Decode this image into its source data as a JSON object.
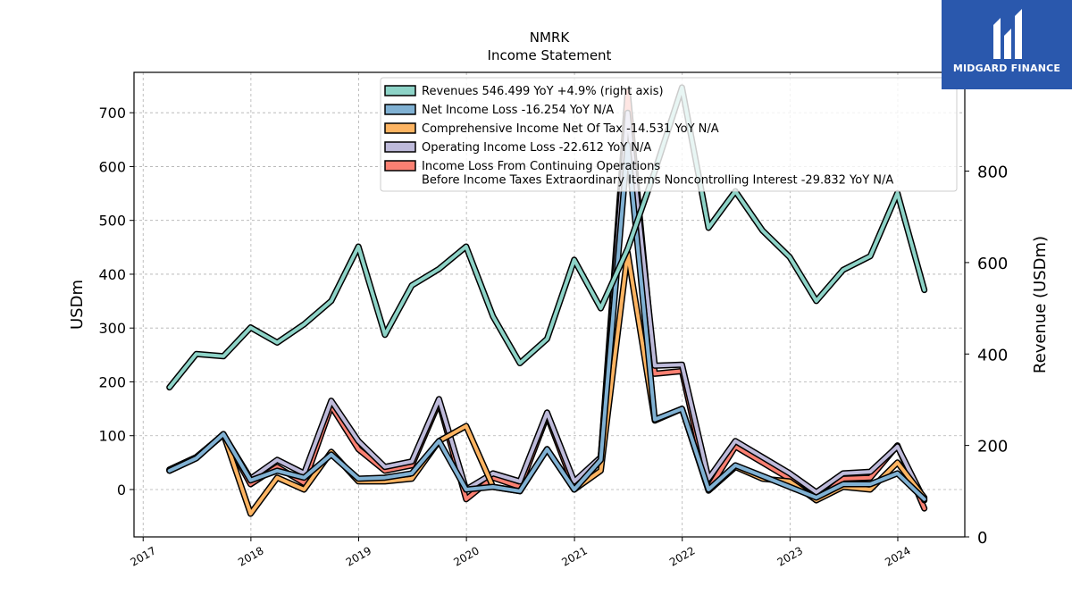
{
  "brand": {
    "name": "MIDGARD FINANCE"
  },
  "chart_data": {
    "type": "line",
    "title": "NMRK",
    "subtitle": "Income Statement",
    "ylabel": "USDm",
    "ylabel_right": "Revenue (USDm)",
    "ylim": [
      -88,
      775
    ],
    "ylim_right": [
      0,
      1016
    ],
    "yticks": [
      0,
      100,
      200,
      300,
      400,
      500,
      600,
      700
    ],
    "yticks_right": [
      0,
      200,
      400,
      600,
      800
    ],
    "xlim": [
      "2016-12-01",
      "2024-08-15"
    ],
    "xticks": [
      "2017",
      "2018",
      "2019",
      "2020",
      "2021",
      "2022",
      "2023",
      "2024"
    ],
    "grid": true,
    "legend_position": "top",
    "x": [
      "2017-03-31",
      "2017-06-30",
      "2017-09-30",
      "2017-12-31",
      "2018-03-31",
      "2018-06-30",
      "2018-09-30",
      "2018-12-31",
      "2019-03-31",
      "2019-06-30",
      "2019-09-30",
      "2019-12-31",
      "2020-03-31",
      "2020-06-30",
      "2020-09-30",
      "2020-12-31",
      "2021-03-31",
      "2021-06-30",
      "2021-09-30",
      "2021-12-31",
      "2022-03-31",
      "2022-06-30",
      "2022-09-30",
      "2022-12-31",
      "2023-03-31",
      "2023-06-30",
      "2023-09-30",
      "2023-12-31",
      "2024-03-31"
    ],
    "series": [
      {
        "name": "Revenues  546.499 YoY +4.9% (right axis)",
        "axis": "right",
        "color": "#8dd3c7",
        "values": [
          327,
          400,
          395,
          458,
          425,
          465,
          516,
          635,
          442,
          550,
          586,
          635,
          482,
          380,
          433,
          606,
          500,
          630,
          800,
          983,
          676,
          756,
          670,
          612,
          516,
          584,
          614,
          752,
          540
        ]
      },
      {
        "name": "Net Income Loss  -16.254 YoY N/A",
        "axis": "left",
        "color": "#80b1d3",
        "values": [
          35,
          58,
          103,
          17,
          35,
          22,
          65,
          20,
          22,
          30,
          90,
          0,
          5,
          -3,
          75,
          0,
          55,
          640,
          130,
          150,
          0,
          45,
          25,
          5,
          -15,
          10,
          10,
          30,
          -18
        ]
      },
      {
        "name": "Comprehensive Income Net Of Tax  -14.531 YoY N/A",
        "axis": "left",
        "color": "#fdb462",
        "values": [
          35,
          58,
          103,
          -45,
          22,
          0,
          70,
          15,
          15,
          20,
          90,
          118,
          5,
          -3,
          75,
          0,
          35,
          440,
          128,
          150,
          -2,
          42,
          20,
          15,
          -20,
          5,
          0,
          50,
          -15
        ]
      },
      {
        "name": "Operating Income Loss  -22.612 YoY N/A",
        "axis": "left",
        "color": "#bebada",
        "values": [
          37,
          60,
          102,
          20,
          55,
          30,
          165,
          90,
          42,
          52,
          168,
          0,
          30,
          15,
          143,
          15,
          60,
          700,
          230,
          232,
          20,
          90,
          60,
          30,
          -5,
          30,
          33,
          80,
          -20
        ]
      },
      {
        "name": "Income Loss From Continuing Operations\nBefore Income Taxes Extraordinary Items Noncontrolling Interest  -29.832 YoY N/A",
        "axis": "left",
        "color": "#fb8072",
        "values": [
          37,
          60,
          102,
          10,
          42,
          12,
          155,
          75,
          35,
          45,
          162,
          -18,
          22,
          5,
          137,
          5,
          60,
          740,
          215,
          220,
          0,
          80,
          50,
          20,
          -20,
          20,
          22,
          82,
          -35
        ]
      }
    ]
  }
}
